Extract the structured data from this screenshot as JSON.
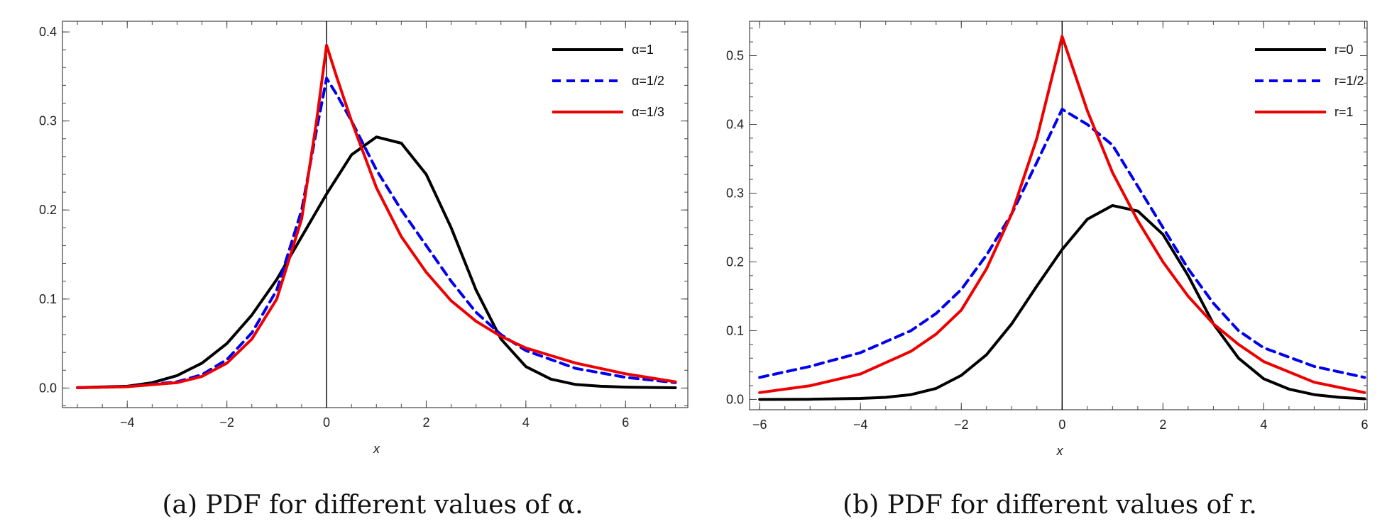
{
  "chart_data": [
    {
      "type": "line",
      "caption": "(a) PDF for different values of α.",
      "xlabel": "x",
      "ylabel": "",
      "xlim": [
        -5.3,
        7.25
      ],
      "ylim": [
        -0.022,
        0.412
      ],
      "xticks": [
        -4,
        -2,
        0,
        2,
        4,
        6
      ],
      "yticks": [
        0.0,
        0.1,
        0.2,
        0.3,
        0.4
      ],
      "legend_position": "top-right",
      "series": [
        {
          "name": "α=1",
          "color": "#000000",
          "dash": "solid",
          "x": [
            -5,
            -4,
            -3.5,
            -3,
            -2.5,
            -2,
            -1.5,
            -1,
            -0.5,
            0,
            0.5,
            1,
            1.5,
            2,
            2.5,
            3,
            3.5,
            4,
            4.5,
            5,
            5.5,
            6,
            7
          ],
          "y": [
            0.0005,
            0.002,
            0.006,
            0.014,
            0.028,
            0.05,
            0.082,
            0.122,
            0.17,
            0.218,
            0.262,
            0.282,
            0.275,
            0.24,
            0.18,
            0.11,
            0.055,
            0.024,
            0.01,
            0.004,
            0.002,
            0.001,
            0.0003
          ]
        },
        {
          "name": "α=1/2",
          "color": "#0000ee",
          "dash": "dashed",
          "x": [
            -5,
            -4,
            -3,
            -2.5,
            -2,
            -1.5,
            -1,
            -0.5,
            -0.2,
            0,
            0.2,
            0.5,
            1,
            1.5,
            2,
            2.5,
            3,
            3.5,
            4,
            5,
            6,
            7
          ],
          "y": [
            0.0004,
            0.0015,
            0.007,
            0.015,
            0.032,
            0.062,
            0.11,
            0.2,
            0.29,
            0.348,
            0.33,
            0.3,
            0.245,
            0.2,
            0.16,
            0.12,
            0.085,
            0.06,
            0.042,
            0.022,
            0.012,
            0.006
          ]
        },
        {
          "name": "α=1/3",
          "color": "#ee0000",
          "dash": "solid",
          "x": [
            -5,
            -4,
            -3,
            -2.5,
            -2,
            -1.5,
            -1,
            -0.5,
            -0.2,
            0,
            0.2,
            0.5,
            1,
            1.5,
            2,
            2.5,
            3,
            3.5,
            4,
            5,
            6,
            7
          ],
          "y": [
            0.0003,
            0.0015,
            0.006,
            0.013,
            0.028,
            0.055,
            0.1,
            0.19,
            0.3,
            0.385,
            0.35,
            0.3,
            0.225,
            0.17,
            0.13,
            0.098,
            0.075,
            0.058,
            0.045,
            0.028,
            0.016,
            0.007
          ]
        }
      ]
    },
    {
      "type": "line",
      "caption": "(b) PDF for different values of r.",
      "xlabel": "x",
      "ylabel": "",
      "xlim": [
        -6.2,
        6.05
      ],
      "ylim": [
        -0.015,
        0.55
      ],
      "xticks": [
        -6,
        -4,
        -2,
        0,
        2,
        4,
        6
      ],
      "yticks": [
        0.0,
        0.1,
        0.2,
        0.3,
        0.4,
        0.5
      ],
      "legend_position": "top-right",
      "series": [
        {
          "name": "r=0",
          "color": "#000000",
          "dash": "solid",
          "x": [
            -6,
            -5,
            -4,
            -3.5,
            -3,
            -2.5,
            -2,
            -1.5,
            -1,
            -0.5,
            0,
            0.5,
            1,
            1.5,
            2,
            2.5,
            3,
            3.5,
            4,
            4.5,
            5,
            5.5,
            6
          ],
          "y": [
            0.0,
            0.0003,
            0.0015,
            0.003,
            0.007,
            0.016,
            0.035,
            0.065,
            0.11,
            0.165,
            0.218,
            0.262,
            0.282,
            0.274,
            0.24,
            0.18,
            0.11,
            0.06,
            0.03,
            0.015,
            0.007,
            0.003,
            0.001
          ]
        },
        {
          "name": "r=1/2",
          "color": "#0000ee",
          "dash": "dashed",
          "x": [
            -6,
            -5,
            -4,
            -3,
            -2.5,
            -2,
            -1.5,
            -1,
            -0.5,
            0,
            0.5,
            1,
            1.5,
            2,
            2.5,
            3,
            3.5,
            4,
            5,
            6
          ],
          "y": [
            0.032,
            0.048,
            0.068,
            0.1,
            0.125,
            0.16,
            0.21,
            0.27,
            0.345,
            0.422,
            0.4,
            0.37,
            0.31,
            0.25,
            0.19,
            0.14,
            0.1,
            0.075,
            0.048,
            0.032
          ]
        },
        {
          "name": "r=1",
          "color": "#ee0000",
          "dash": "solid",
          "x": [
            -6,
            -5,
            -4,
            -3,
            -2.5,
            -2,
            -1.5,
            -1,
            -0.5,
            0,
            0.5,
            1,
            1.5,
            2,
            2.5,
            3,
            3.5,
            4,
            5,
            6
          ],
          "y": [
            0.01,
            0.02,
            0.037,
            0.07,
            0.095,
            0.13,
            0.19,
            0.27,
            0.38,
            0.528,
            0.42,
            0.33,
            0.26,
            0.2,
            0.15,
            0.11,
            0.08,
            0.055,
            0.025,
            0.01
          ]
        }
      ]
    }
  ]
}
